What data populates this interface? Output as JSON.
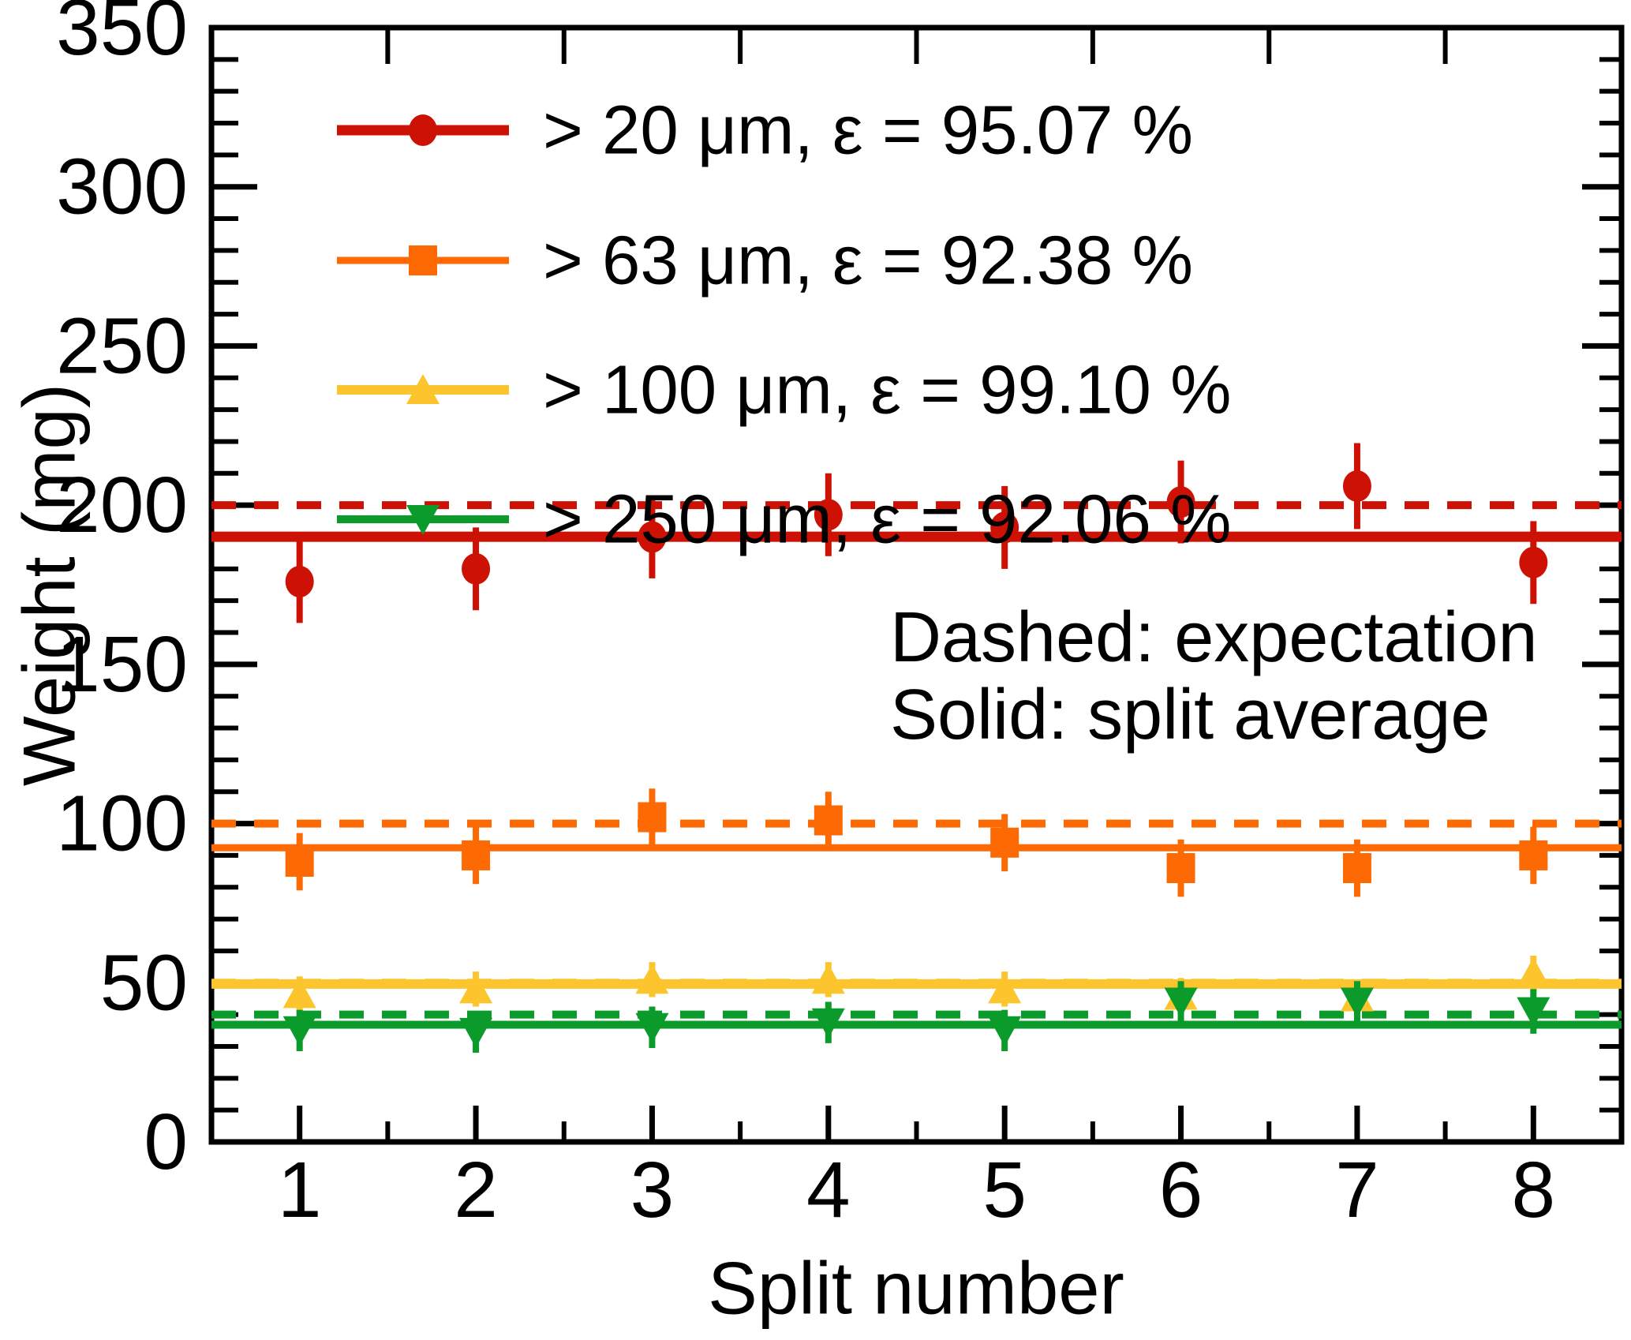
{
  "figure": {
    "background": "#ffffff",
    "frame_color": "#000000"
  },
  "axes": {
    "x": {
      "label": "Split number",
      "range": [
        0.5,
        8.5
      ],
      "ticks": [
        1,
        2,
        3,
        4,
        5,
        6,
        7,
        8
      ],
      "minor_tick_positions": [
        1.5,
        2.5,
        3.5,
        4.5,
        5.5,
        6.5,
        7.5
      ]
    },
    "y": {
      "label": "Weight (mg)",
      "range": [
        0,
        350
      ],
      "ticks": [
        0,
        50,
        100,
        150,
        200,
        250,
        300,
        350
      ],
      "minor_step": 10
    }
  },
  "annotation": {
    "line1": "Dashed: expectation",
    "line2": "Solid: split average"
  },
  "chart_data": {
    "type": "scatter",
    "x_label": "Split number",
    "y_label": "Weight (mg)",
    "x": [
      1,
      2,
      3,
      4,
      5,
      6,
      7,
      8
    ],
    "legend_note": [
      "Dashed: expectation",
      "Solid: split average"
    ],
    "series": [
      {
        "name": "> 20 μm, ε = 95.07 %",
        "threshold": "> 20 μm",
        "efficiency_pct": 95.07,
        "color": "#cd1205",
        "marker": "circle",
        "expectation": 200,
        "average": 190.1,
        "values": [
          176,
          180,
          190,
          197,
          193,
          201,
          206,
          182
        ],
        "errors": [
          13,
          13,
          13,
          13,
          13,
          13,
          13.5,
          13
        ]
      },
      {
        "name": "> 63 μm, ε = 92.38 %",
        "threshold": "> 63 μm",
        "efficiency_pct": 92.38,
        "color": "#fd6903",
        "marker": "square",
        "expectation": 100,
        "average": 92.4,
        "values": [
          88,
          90,
          102,
          101,
          94,
          86,
          86,
          90
        ],
        "errors": [
          9,
          9,
          9,
          9,
          9,
          9,
          9,
          9
        ]
      },
      {
        "name": "> 100 μm, ε = 99.10 %",
        "threshold": "> 100 μm",
        "efficiency_pct": 99.1,
        "color": "#fcc42d",
        "marker": "triangle-up",
        "expectation": 50,
        "average": 49.6,
        "values": [
          46.5,
          48,
          51,
          51,
          48,
          46,
          45.5,
          53
        ],
        "errors": [
          5.5,
          5.5,
          5.5,
          5.5,
          5.5,
          5.5,
          5.5,
          5.5
        ]
      },
      {
        "name": "> 250 μm, ε = 92.06 %",
        "threshold": "> 250 μm",
        "efficiency_pct": 92.06,
        "color": "#0a9b2b",
        "marker": "triangle-down",
        "expectation": 40,
        "average": 36.8,
        "values": [
          35,
          34.5,
          36,
          37.5,
          35,
          44,
          44,
          41
        ],
        "errors": [
          6.5,
          6.5,
          6.5,
          6.5,
          6.5,
          6.5,
          6.5,
          7
        ]
      }
    ]
  }
}
